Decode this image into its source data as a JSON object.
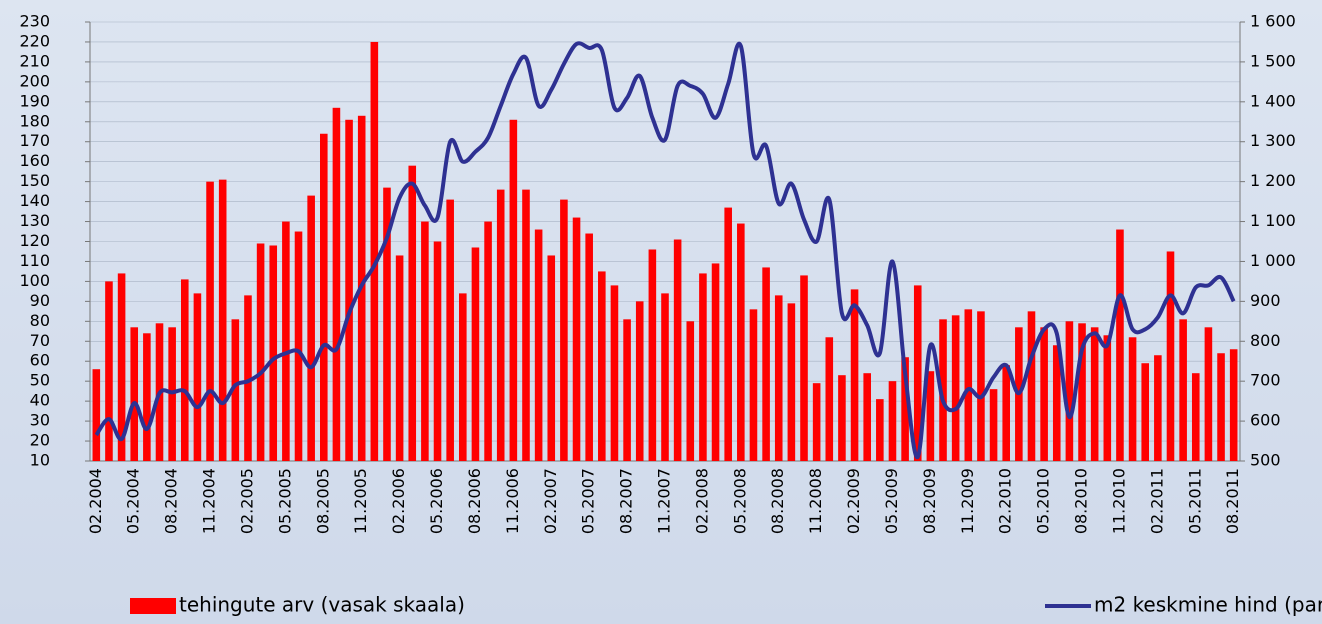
{
  "chart_data": {
    "type": "bar_line",
    "categories": [
      "02.2004",
      null,
      null,
      "05.2004",
      null,
      null,
      "08.2004",
      null,
      null,
      "11.2004",
      null,
      null,
      "02.2005",
      null,
      null,
      "05.2005",
      null,
      null,
      "08.2005",
      null,
      null,
      "11.2005",
      null,
      null,
      "02.2006",
      null,
      null,
      "05.2006",
      null,
      null,
      "08.2006",
      null,
      null,
      "11.2006",
      null,
      null,
      "02.2007",
      null,
      null,
      "05.2007",
      null,
      null,
      "08.2007",
      null,
      null,
      "11.2007",
      null,
      null,
      "02.2008",
      null,
      null,
      "05.2008",
      null,
      null,
      "08.2008",
      null,
      null,
      "11.2008",
      null,
      null,
      "02.2009",
      null,
      null,
      "05.2009",
      null,
      null,
      "08.2009",
      null,
      null,
      "11.2009",
      null,
      null,
      "02.2010",
      null,
      null,
      "05.2010",
      null,
      null,
      "08.2010",
      null,
      null,
      "11.2010",
      null,
      null,
      "02.2011",
      null,
      null,
      "05.2011",
      null,
      null,
      "08.2011"
    ],
    "series": [
      {
        "name": "tehingute arv (vasak skaala)",
        "color": "#ff0000",
        "kind": "bar",
        "values": [
          56,
          100,
          104,
          77,
          74,
          79,
          77,
          101,
          94,
          150,
          151,
          81,
          93,
          119,
          118,
          130,
          125,
          143,
          174,
          187,
          181,
          183,
          220,
          147,
          113,
          158,
          130,
          120,
          141,
          94,
          117,
          130,
          146,
          181,
          146,
          126,
          113,
          141,
          132,
          124,
          105,
          98,
          81,
          90,
          116,
          94,
          121,
          80,
          104,
          109,
          137,
          129,
          86,
          107,
          93,
          89,
          103,
          49,
          72,
          53,
          96,
          54,
          41,
          50,
          62,
          98,
          55,
          81,
          83,
          86,
          85,
          46,
          58,
          77,
          85,
          77,
          68,
          80,
          79,
          77,
          73,
          126,
          72,
          59,
          63,
          115,
          81,
          54,
          77,
          64,
          66
        ]
      },
      {
        "name": "m2 keskmine hind (parem skaala)",
        "color": "#2e3192",
        "kind": "line",
        "axis": "y2",
        "values": [
          565,
          605,
          555,
          645,
          580,
          670,
          672,
          675,
          635,
          675,
          645,
          690,
          700,
          720,
          755,
          770,
          775,
          735,
          790,
          780,
          870,
          940,
          990,
          1060,
          1160,
          1195,
          1140,
          1110,
          1300,
          1250,
          1275,
          1310,
          1390,
          1470,
          1510,
          1390,
          1430,
          1495,
          1545,
          1535,
          1530,
          1385,
          1410,
          1465,
          1360,
          1305,
          1440,
          1440,
          1420,
          1360,
          1445,
          1540,
          1270,
          1290,
          1145,
          1195,
          1105,
          1050,
          1155,
          870,
          890,
          840,
          770,
          1000,
          720,
          510,
          790,
          650,
          630,
          680,
          660,
          710,
          740,
          670,
          760,
          830,
          820,
          610,
          780,
          820,
          790,
          915,
          830,
          830,
          860,
          915,
          870,
          935,
          940,
          960,
          900
        ]
      }
    ],
    "ylim": [
      10,
      230
    ],
    "yticks": [
      10,
      20,
      30,
      40,
      50,
      60,
      70,
      80,
      90,
      100,
      110,
      120,
      130,
      140,
      150,
      160,
      170,
      180,
      190,
      200,
      210,
      220,
      230
    ],
    "y2lim": [
      500,
      1600
    ],
    "y2ticks": [
      {
        "value": 500,
        "label": "500"
      },
      {
        "value": 600,
        "label": "600"
      },
      {
        "value": 700,
        "label": "700"
      },
      {
        "value": 800,
        "label": "800"
      },
      {
        "value": 900,
        "label": "900"
      },
      {
        "value": 1000,
        "label": "1 000"
      },
      {
        "value": 1100,
        "label": "1 100"
      },
      {
        "value": 1200,
        "label": "1 200"
      },
      {
        "value": 1300,
        "label": "1 300"
      },
      {
        "value": 1400,
        "label": "1 400"
      },
      {
        "value": 1500,
        "label": "1 500"
      },
      {
        "value": 1600,
        "label": "1 600"
      }
    ],
    "grid": true
  }
}
